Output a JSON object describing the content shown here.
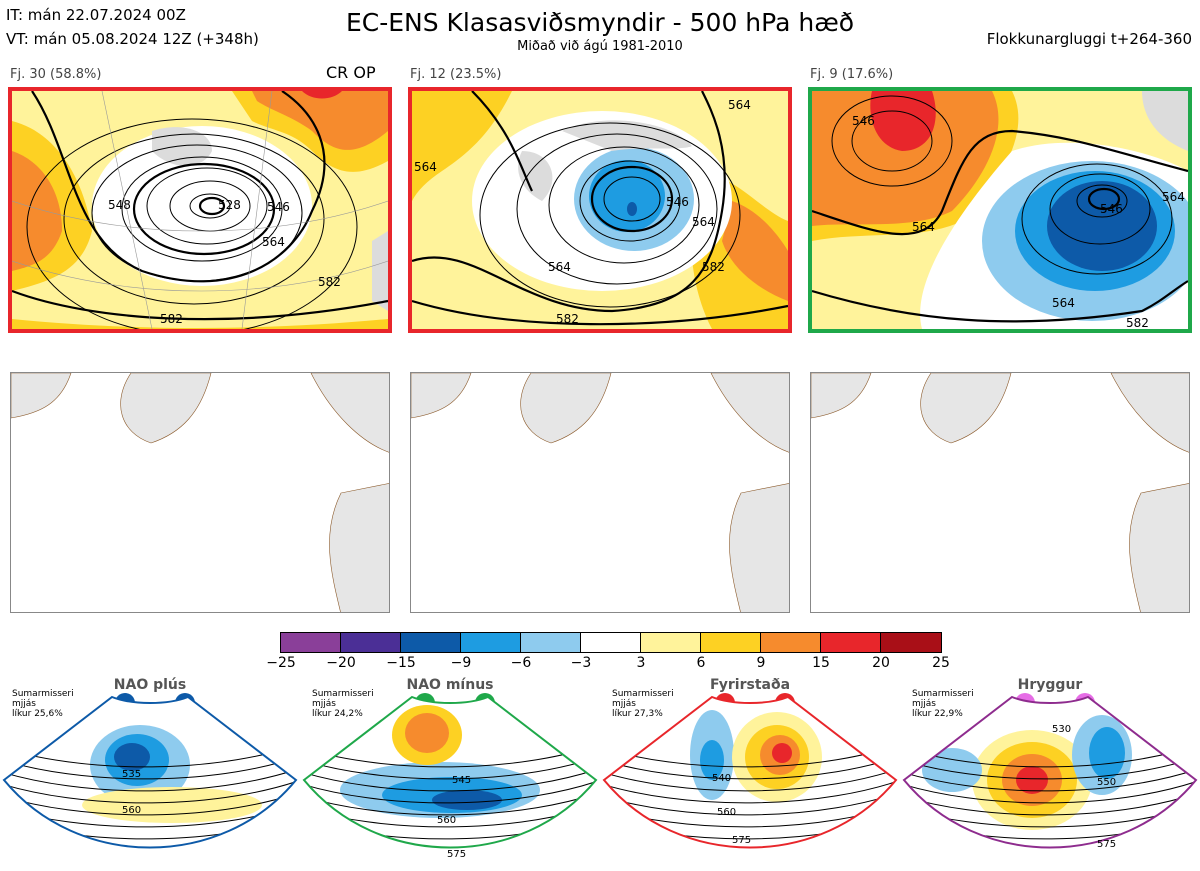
{
  "header": {
    "it": "IT: mán 22.07.2024 00Z",
    "vt": "VT: mán 05.08.2024 12Z  (+348h)",
    "title": "EC-ENS Klasasviðsmyndir - 500 hPa hæð",
    "subtitle": "Miðað við ágú 1981-2010",
    "window": "Flokkunargluggi t+264-360"
  },
  "clusters": [
    {
      "caption": "Fj. 30 (58.8%)",
      "tag": "CR OP",
      "border": "#e8262b",
      "contours": [
        "548",
        "528",
        "546",
        "564",
        "582",
        "582"
      ]
    },
    {
      "caption": "Fj. 12 (23.5%)",
      "tag": "",
      "border": "#e8262b",
      "contours": [
        "564",
        "546",
        "564",
        "564",
        "582",
        "582",
        "564"
      ]
    },
    {
      "caption": "Fj. 9 (17.6%)",
      "tag": "",
      "border": "#1fa84a",
      "contours": [
        "546",
        "564",
        "546",
        "564",
        "564",
        "582"
      ]
    }
  ],
  "colorbar": {
    "colors": [
      "#8a3f99",
      "#4b2f96",
      "#0d5aa8",
      "#1e9ce1",
      "#8ecbee",
      "#ffffff",
      "#fff39b",
      "#fdd123",
      "#f68b2d",
      "#e8262b",
      "#a90f17"
    ],
    "ticks": [
      "−25",
      "−20",
      "−15",
      "−9",
      "−6",
      "−3",
      "3",
      "6",
      "9",
      "15",
      "20",
      "25"
    ]
  },
  "regimes": [
    {
      "title": "NAO plús",
      "season": "Sumarmisseri",
      "mean": "mjjás",
      "prob": "líkur 25,6%",
      "color": "#0d5aa8",
      "contours": [
        "535",
        "560"
      ]
    },
    {
      "title": "NAO mínus",
      "season": "Sumarmisseri",
      "mean": "mjjás",
      "prob": "líkur 24,2%",
      "color": "#1fa84a",
      "contours": [
        "545",
        "560",
        "575"
      ]
    },
    {
      "title": "Fyrirstaða",
      "season": "Sumarmisseri",
      "mean": "mjjás",
      "prob": "líkur 27,3%",
      "color": "#e8262b",
      "contours": [
        "540",
        "560",
        "575"
      ]
    },
    {
      "title": "Hryggur",
      "season": "Sumarmisseri",
      "mean": "mjjás",
      "prob": "líkur 22,9%",
      "color": "#8e2c8e",
      "dot_color": "#e66de6",
      "contours": [
        "530",
        "550",
        "575"
      ]
    }
  ]
}
